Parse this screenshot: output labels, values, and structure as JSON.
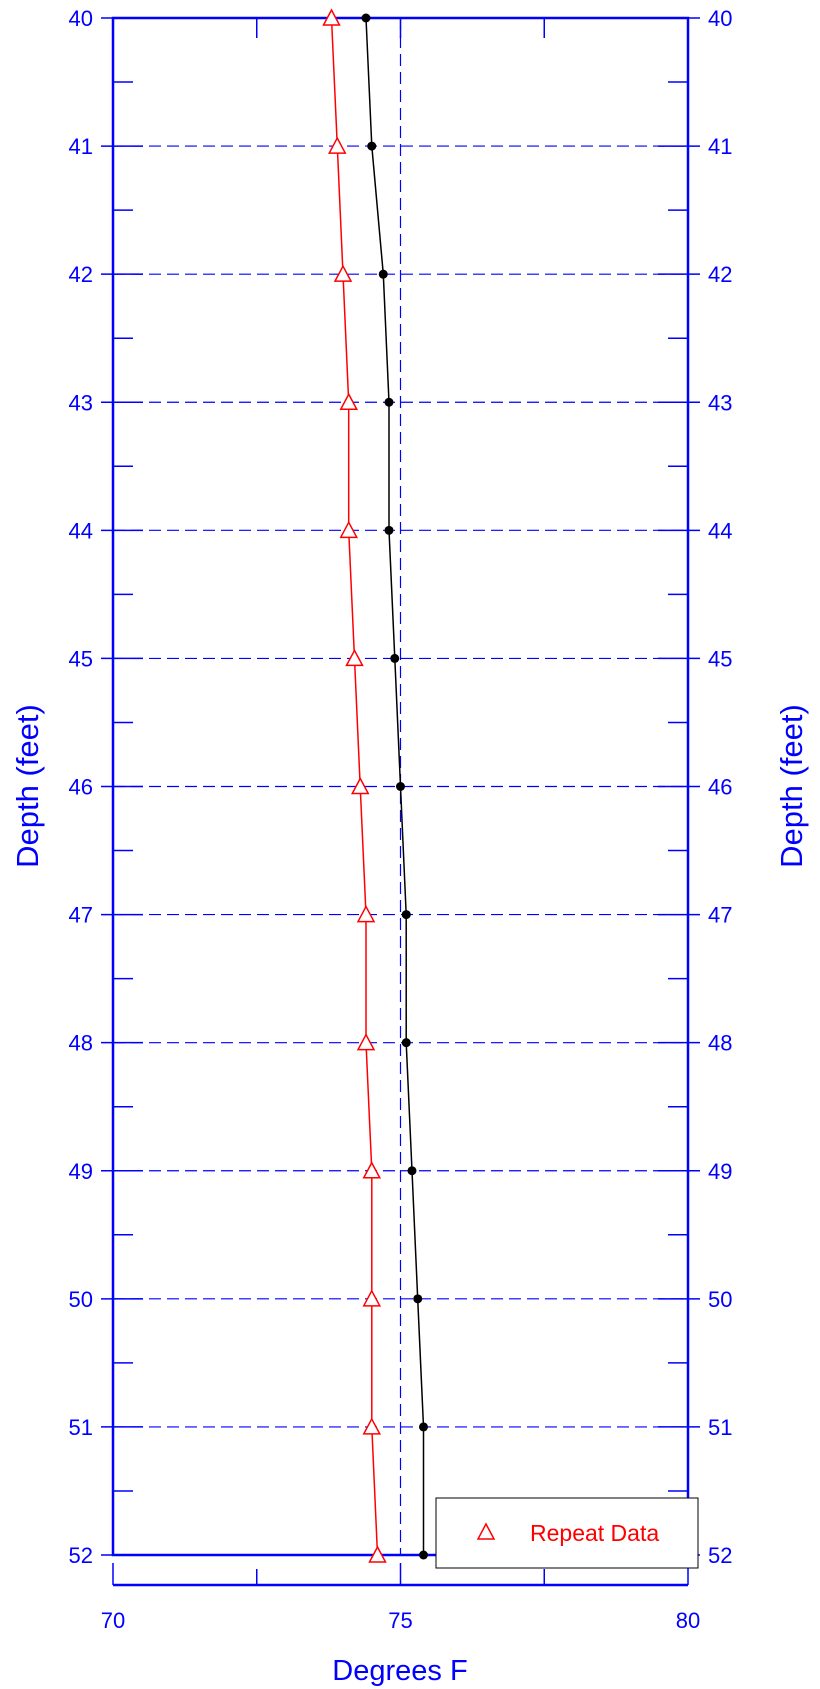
{
  "chart_data": {
    "type": "line",
    "xlabel": "Degrees F",
    "ylabel_left": "Depth (feet)",
    "ylabel_right": "Depth (feet)",
    "xlim": [
      70,
      80
    ],
    "ylim": [
      40,
      52
    ],
    "y_inverted": true,
    "x_ticks": [
      70,
      75,
      80
    ],
    "y_ticks": [
      40,
      41,
      42,
      43,
      44,
      45,
      46,
      47,
      48,
      49,
      50,
      51,
      52
    ],
    "grid": "dashed",
    "legend_position": "bottom-right",
    "colors": {
      "axis": "#0000ff",
      "grid": "#0000ff",
      "repeat": "#ff0000",
      "main": "#000000"
    },
    "series": [
      {
        "marker": "circle",
        "color": "#000000",
        "x": [
          74.4,
          74.5,
          74.7,
          74.8,
          74.8,
          74.9,
          75.0,
          75.1,
          75.1,
          75.2,
          75.3,
          75.4,
          75.4
        ],
        "y": [
          40,
          41,
          42,
          43,
          44,
          45,
          46,
          47,
          48,
          49,
          50,
          51,
          52
        ]
      },
      {
        "name": "Repeat Data",
        "marker": "triangle",
        "color": "#ff0000",
        "x": [
          73.8,
          73.9,
          74.0,
          74.1,
          74.1,
          74.2,
          74.3,
          74.4,
          74.4,
          74.5,
          74.5,
          74.5,
          74.6
        ],
        "y": [
          40,
          41,
          42,
          43,
          44,
          45,
          46,
          47,
          48,
          49,
          50,
          51,
          52
        ]
      }
    ]
  }
}
